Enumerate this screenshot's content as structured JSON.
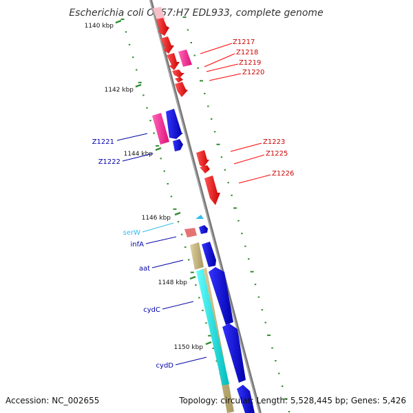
{
  "title": "Escherichia coli O157:H7 EDL933, complete genome",
  "footer": {
    "accession": "Accession: NC_002655",
    "summary": "Topology: circular; Length: 5,528,445 bp; Genes: 5,426"
  },
  "colors": {
    "backbone": "#888888",
    "tick": "#2e8b2e",
    "red_gene": "#ff0000",
    "red_label": "#cc0000",
    "magenta_gene": "#ff3399",
    "blue_gene": "#0000ee",
    "blue_label": "#0000aa",
    "cyan_label": "#33bbee",
    "cyan_feature": "#00e5e5",
    "khaki_feature": "#c8b878",
    "trna": "#33bbee",
    "pink_feature": "#e57373"
  },
  "kbp_labels": [
    "1140 kbp",
    "1142 kbp",
    "1144 kbp",
    "1146 kbp",
    "1148 kbp",
    "1150 kbp"
  ],
  "gene_labels": {
    "right": [
      "Z1217",
      "Z1218",
      "Z1219",
      "Z1220",
      "Z1223",
      "Z1225",
      "Z1226"
    ],
    "left": [
      "Z1221",
      "Z1222",
      "serW",
      "infA",
      "aat",
      "cydC",
      "cydD"
    ]
  }
}
